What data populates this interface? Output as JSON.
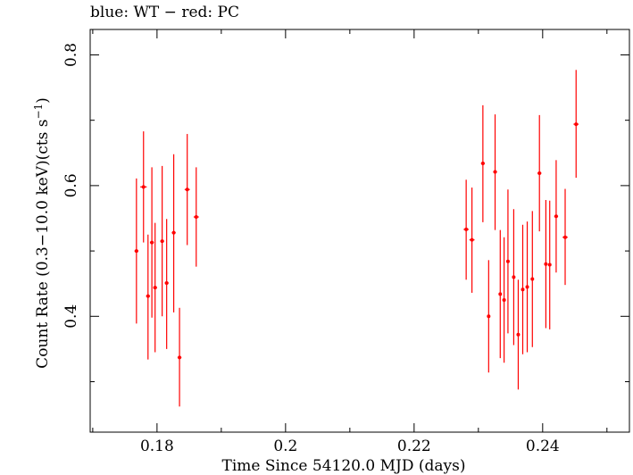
{
  "chart_data": {
    "type": "scatter",
    "title": "blue: WT − red: PC",
    "xlabel": "Time Since 54120.0 MJD (days)",
    "ylabel_main": "Count Rate (0.3−10.0 keV)(cts s",
    "ylabel_sup": "−1",
    "ylabel_close": ")",
    "xlim": [
      0.1696,
      0.2535
    ],
    "ylim": [
      0.2228,
      0.8389
    ],
    "xticks_major": [
      0.18,
      0.2,
      0.22,
      0.24
    ],
    "xtick_labels": [
      "0.18",
      "0.2",
      "0.22",
      "0.24"
    ],
    "xticks_minor": [
      0.17,
      0.19,
      0.21,
      0.23,
      0.25
    ],
    "yticks_major": [
      0.4,
      0.6,
      0.8
    ],
    "ytick_labels": [
      "0.4",
      "0.6",
      "0.8"
    ],
    "yticks_minor": [
      0.3,
      0.5,
      0.7
    ],
    "grid": false,
    "series": [
      {
        "name": "PC",
        "color": "#ff0000",
        "points": [
          {
            "x": 0.1768,
            "xerr": 0.0003,
            "y": 0.5,
            "ylo": 0.389,
            "yhi": 0.611
          },
          {
            "x": 0.1779,
            "xerr": 0.0005,
            "y": 0.598,
            "ylo": 0.513,
            "yhi": 0.683
          },
          {
            "x": 0.1786,
            "xerr": 0.0003,
            "y": 0.431,
            "ylo": 0.334,
            "yhi": 0.525
          },
          {
            "x": 0.1792,
            "xerr": 0.0003,
            "y": 0.513,
            "ylo": 0.398,
            "yhi": 0.628
          },
          {
            "x": 0.1797,
            "xerr": 0.0003,
            "y": 0.444,
            "ylo": 0.345,
            "yhi": 0.543
          },
          {
            "x": 0.1808,
            "xerr": 0.0003,
            "y": 0.515,
            "ylo": 0.4,
            "yhi": 0.63
          },
          {
            "x": 0.1815,
            "xerr": 0.0003,
            "y": 0.451,
            "ylo": 0.35,
            "yhi": 0.549
          },
          {
            "x": 0.1826,
            "xerr": 0.0003,
            "y": 0.528,
            "ylo": 0.406,
            "yhi": 0.648
          },
          {
            "x": 0.1835,
            "xerr": 0.0003,
            "y": 0.337,
            "ylo": 0.262,
            "yhi": 0.413
          },
          {
            "x": 0.1847,
            "xerr": 0.0004,
            "y": 0.594,
            "ylo": 0.509,
            "yhi": 0.679
          },
          {
            "x": 0.1861,
            "xerr": 0.0004,
            "y": 0.552,
            "ylo": 0.476,
            "yhi": 0.628
          },
          {
            "x": 0.2281,
            "xerr": 0.0004,
            "y": 0.533,
            "ylo": 0.456,
            "yhi": 0.609
          },
          {
            "x": 0.229,
            "xerr": 0.0004,
            "y": 0.517,
            "ylo": 0.436,
            "yhi": 0.597
          },
          {
            "x": 0.2307,
            "xerr": 0.0003,
            "y": 0.634,
            "ylo": 0.544,
            "yhi": 0.723
          },
          {
            "x": 0.2316,
            "xerr": 0.0002,
            "y": 0.4,
            "ylo": 0.314,
            "yhi": 0.486
          },
          {
            "x": 0.2326,
            "xerr": 0.0003,
            "y": 0.621,
            "ylo": 0.532,
            "yhi": 0.709
          },
          {
            "x": 0.2334,
            "xerr": 0.0002,
            "y": 0.434,
            "ylo": 0.336,
            "yhi": 0.532
          },
          {
            "x": 0.234,
            "xerr": 0.0002,
            "y": 0.425,
            "ylo": 0.329,
            "yhi": 0.521
          },
          {
            "x": 0.2346,
            "xerr": 0.0002,
            "y": 0.484,
            "ylo": 0.374,
            "yhi": 0.594
          },
          {
            "x": 0.2355,
            "xerr": 0.0002,
            "y": 0.46,
            "ylo": 0.356,
            "yhi": 0.564
          },
          {
            "x": 0.2362,
            "xerr": 0.0002,
            "y": 0.372,
            "ylo": 0.288,
            "yhi": 0.456
          },
          {
            "x": 0.2369,
            "xerr": 0.0002,
            "y": 0.441,
            "ylo": 0.342,
            "yhi": 0.54
          },
          {
            "x": 0.2376,
            "xerr": 0.0002,
            "y": 0.445,
            "ylo": 0.345,
            "yhi": 0.545
          },
          {
            "x": 0.2384,
            "xerr": 0.0002,
            "y": 0.457,
            "ylo": 0.353,
            "yhi": 0.561
          },
          {
            "x": 0.2395,
            "xerr": 0.0003,
            "y": 0.619,
            "ylo": 0.53,
            "yhi": 0.708
          },
          {
            "x": 0.2405,
            "xerr": 0.0002,
            "y": 0.48,
            "ylo": 0.382,
            "yhi": 0.578
          },
          {
            "x": 0.2411,
            "xerr": 0.0002,
            "y": 0.479,
            "ylo": 0.38,
            "yhi": 0.577
          },
          {
            "x": 0.2421,
            "xerr": 0.0003,
            "y": 0.553,
            "ylo": 0.467,
            "yhi": 0.639
          },
          {
            "x": 0.2435,
            "xerr": 0.0004,
            "y": 0.521,
            "ylo": 0.448,
            "yhi": 0.595
          },
          {
            "x": 0.2452,
            "xerr": 0.0004,
            "y": 0.694,
            "ylo": 0.612,
            "yhi": 0.777
          }
        ]
      }
    ]
  }
}
